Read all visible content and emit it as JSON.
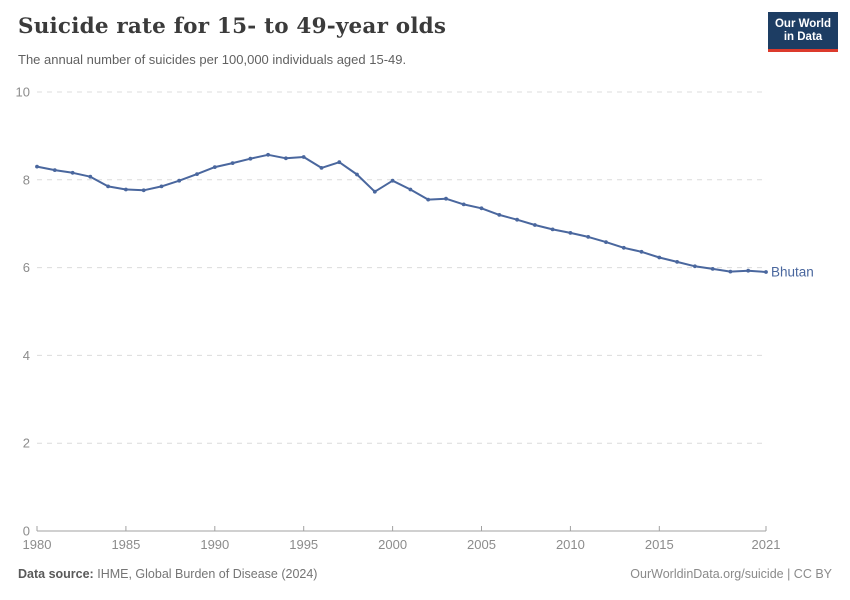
{
  "header": {
    "title": "Suicide rate for 15- to 49-year olds",
    "subtitle": "The annual number of suicides per 100,000 individuals aged 15-49."
  },
  "logo": {
    "line1": "Our World",
    "line2": "in Data"
  },
  "footer": {
    "source_label": "Data source:",
    "source_value": "IHME, Global Burden of Disease (2024)",
    "credit": "OurWorldinData.org/suicide | CC BY"
  },
  "colors": {
    "line": "#4A679E",
    "grid": "#dcdcdc",
    "axis": "#a1a1a1",
    "tick_label": "#8c8c8c",
    "logo_bg": "#1d3d63",
    "logo_accent": "#dc3a2c"
  },
  "chart_data": {
    "type": "line",
    "title": "Suicide rate for 15- to 49-year olds",
    "subtitle": "The annual number of suicides per 100,000 individuals aged 15-49.",
    "xlabel": "",
    "ylabel": "",
    "xlim": [
      1980,
      2021
    ],
    "ylim": [
      0,
      10
    ],
    "x_ticks": [
      1980,
      1985,
      1990,
      1995,
      2000,
      2005,
      2010,
      2015,
      2021
    ],
    "y_ticks": [
      0,
      2,
      4,
      6,
      8,
      10
    ],
    "grid": "horizontal-dashed",
    "legend": "end-of-line-label",
    "series": [
      {
        "name": "Bhutan",
        "color": "#4A679E",
        "x": [
          1980,
          1981,
          1982,
          1983,
          1984,
          1985,
          1986,
          1987,
          1988,
          1989,
          1990,
          1991,
          1992,
          1993,
          1994,
          1995,
          1996,
          1997,
          1998,
          1999,
          2000,
          2001,
          2002,
          2003,
          2004,
          2005,
          2006,
          2007,
          2008,
          2009,
          2010,
          2011,
          2012,
          2013,
          2014,
          2015,
          2016,
          2017,
          2018,
          2019,
          2020,
          2021
        ],
        "values": [
          8.3,
          8.22,
          8.16,
          8.07,
          7.85,
          7.78,
          7.76,
          7.85,
          7.98,
          8.13,
          8.29,
          8.38,
          8.48,
          8.57,
          8.49,
          8.52,
          8.27,
          8.4,
          8.12,
          7.73,
          7.98,
          7.78,
          7.55,
          7.57,
          7.44,
          7.35,
          7.2,
          7.09,
          6.97,
          6.87,
          6.79,
          6.7,
          6.58,
          6.45,
          6.36,
          6.23,
          6.13,
          6.03,
          5.97,
          5.91,
          5.93,
          5.9
        ]
      }
    ]
  }
}
